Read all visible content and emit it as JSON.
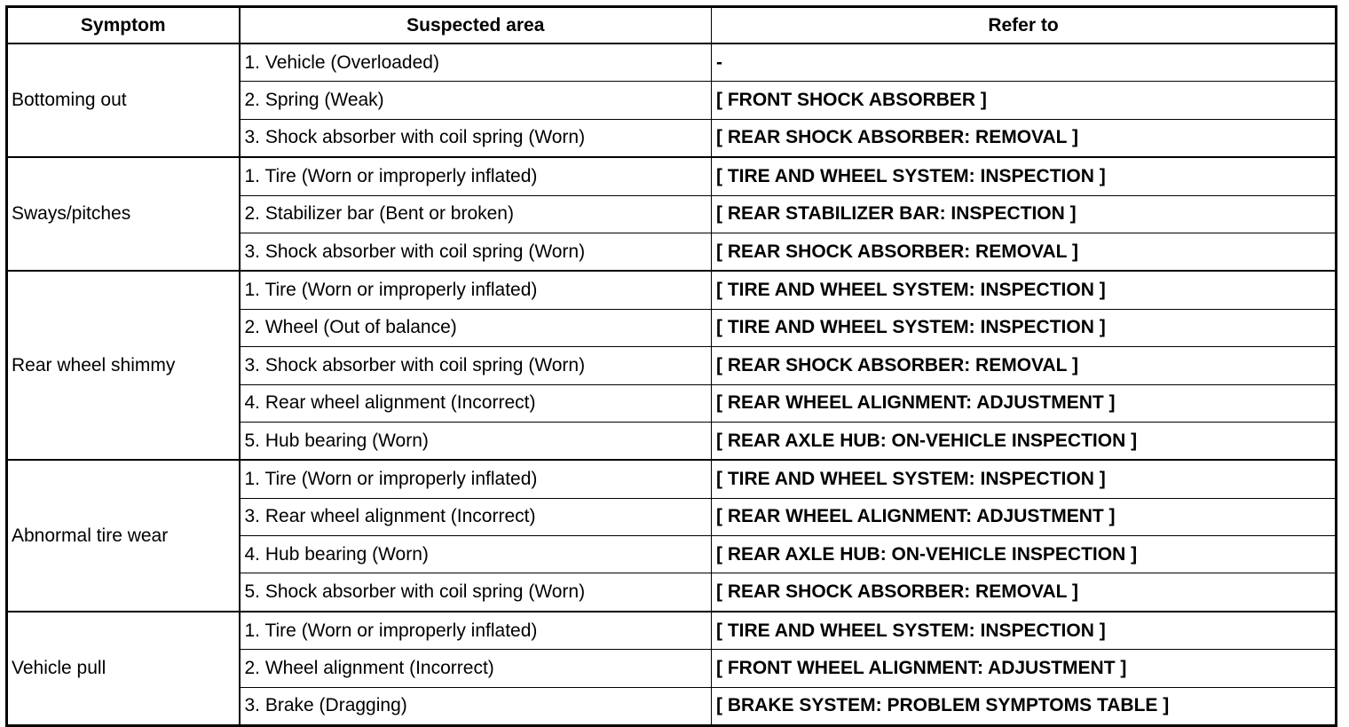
{
  "headers": [
    "Symptom",
    "Suspected area",
    "Refer to"
  ],
  "groups": [
    {
      "symptom": "Bottoming out",
      "rows": [
        {
          "area": "1. Vehicle (Overloaded)",
          "refer": "-"
        },
        {
          "area": "2. Spring (Weak)",
          "refer": "[ FRONT SHOCK ABSORBER ]"
        },
        {
          "area": "3. Shock absorber with coil spring (Worn)",
          "refer": "[ REAR SHOCK ABSORBER: REMOVAL ]"
        }
      ]
    },
    {
      "symptom": "Sways/pitches",
      "rows": [
        {
          "area": "1. Tire (Worn or improperly inflated)",
          "refer": "[ TIRE AND WHEEL SYSTEM: INSPECTION ]"
        },
        {
          "area": "2. Stabilizer bar (Bent or broken)",
          "refer": "[ REAR STABILIZER BAR: INSPECTION ]"
        },
        {
          "area": "3. Shock absorber with coil spring (Worn)",
          "refer": "[ REAR SHOCK ABSORBER: REMOVAL ]"
        }
      ]
    },
    {
      "symptom": "Rear wheel shimmy",
      "rows": [
        {
          "area": "1. Tire (Worn or improperly inflated)",
          "refer": "[ TIRE AND WHEEL SYSTEM: INSPECTION ]"
        },
        {
          "area": "2. Wheel (Out of balance)",
          "refer": "[ TIRE AND WHEEL SYSTEM: INSPECTION ]"
        },
        {
          "area": "3. Shock absorber with coil spring (Worn)",
          "refer": "[ REAR SHOCK ABSORBER: REMOVAL ]"
        },
        {
          "area": "4. Rear wheel alignment (Incorrect)",
          "refer": "[ REAR WHEEL ALIGNMENT: ADJUSTMENT ]"
        },
        {
          "area": "5. Hub bearing (Worn)",
          "refer": "[ REAR AXLE HUB: ON-VEHICLE INSPECTION ]"
        }
      ]
    },
    {
      "symptom": "Abnormal tire wear",
      "rows": [
        {
          "area": "1. Tire (Worn or improperly inflated)",
          "refer": "[ TIRE AND WHEEL SYSTEM: INSPECTION ]"
        },
        {
          "area": "3. Rear wheel alignment (Incorrect)",
          "refer": "[ REAR WHEEL ALIGNMENT: ADJUSTMENT ]"
        },
        {
          "area": "4. Hub bearing (Worn)",
          "refer": "[ REAR AXLE HUB: ON-VEHICLE INSPECTION ]"
        },
        {
          "area": "5. Shock absorber with coil spring (Worn)",
          "refer": "[ REAR SHOCK ABSORBER: REMOVAL ]"
        }
      ]
    },
    {
      "symptom": "Vehicle pull",
      "rows": [
        {
          "area": "1. Tire (Worn or improperly inflated)",
          "refer": "[ TIRE AND WHEEL SYSTEM: INSPECTION ]"
        },
        {
          "area": "2. Wheel alignment (Incorrect)",
          "refer": "[ FRONT WHEEL ALIGNMENT: ADJUSTMENT ]"
        },
        {
          "area": "3. Brake (Dragging)",
          "refer": "[ BRAKE SYSTEM: PROBLEM SYMPTOMS TABLE ]"
        }
      ]
    }
  ]
}
